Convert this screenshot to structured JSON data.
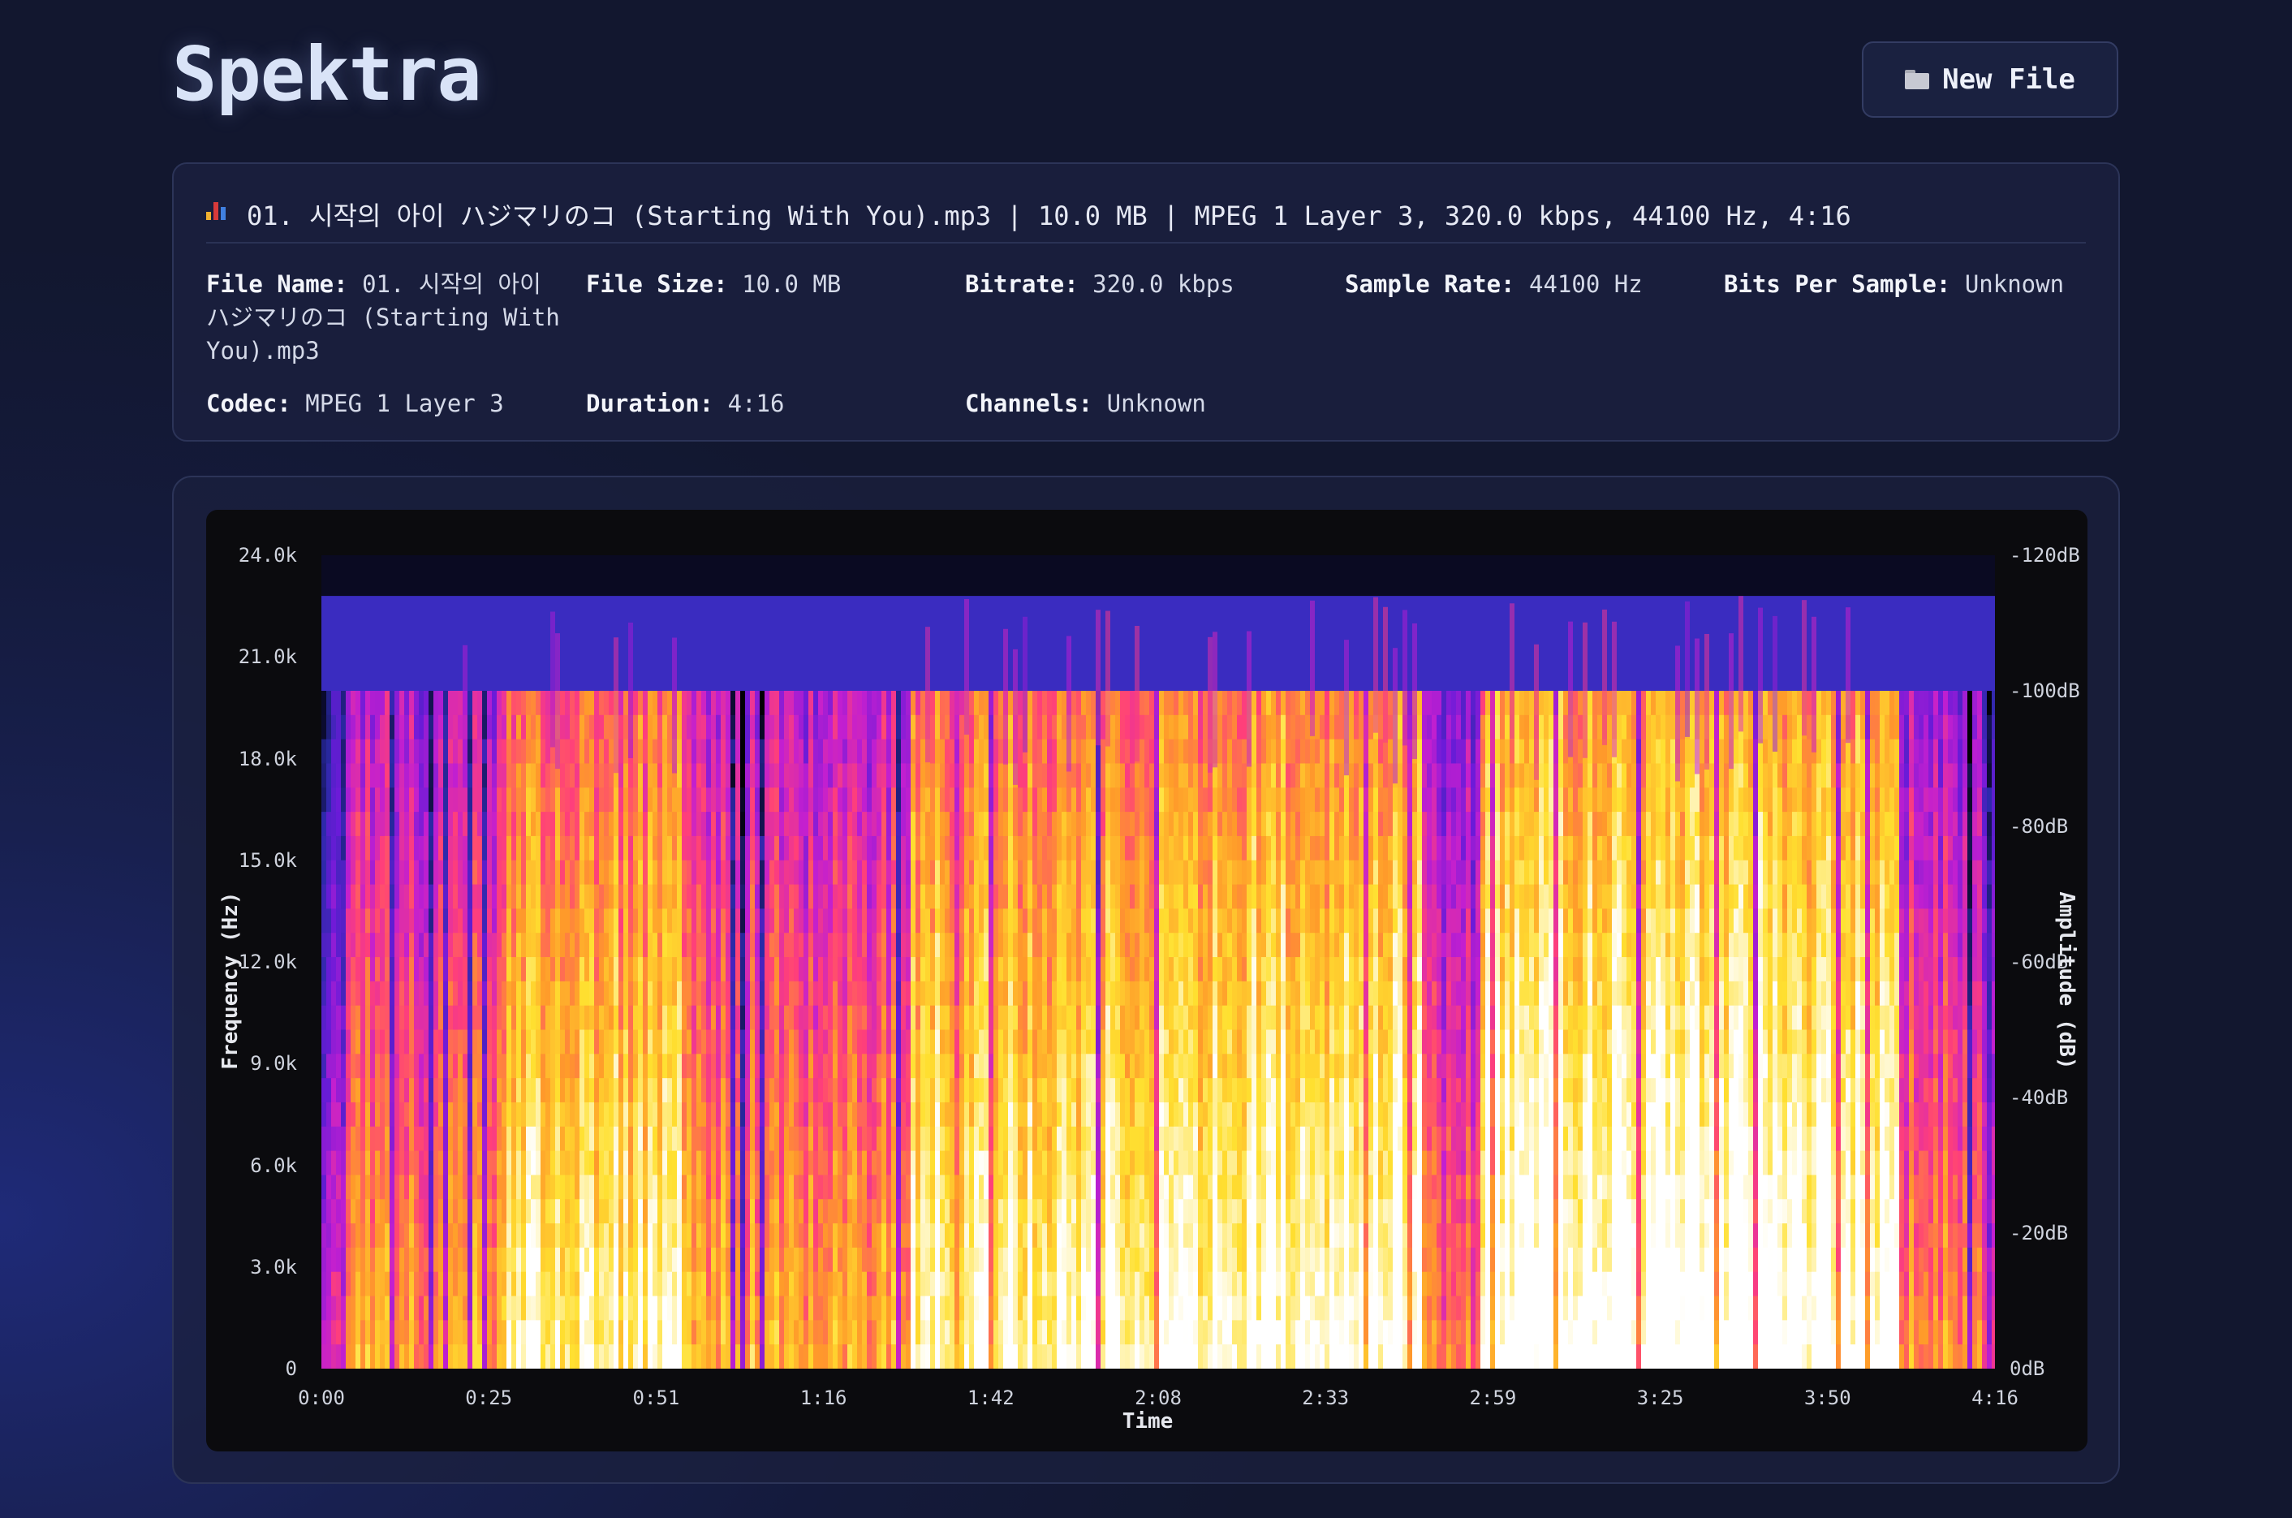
{
  "app": {
    "title": "Spektra",
    "new_file_label": "New File",
    "new_file_icon": "folder-icon"
  },
  "file": {
    "summary_icon": "bar-chart-icon",
    "summary": "01. 시작의 아이 ハジマリのコ (Starting With You).mp3 | 10.0 MB | MPEG 1 Layer 3, 320.0 kbps, 44100 Hz, 4:16",
    "details": [
      {
        "label": "File Name:",
        "value": "01. 시작의 아이 ハジマリのコ (Starting With You).mp3"
      },
      {
        "label": "File Size:",
        "value": "10.0 MB"
      },
      {
        "label": "Bitrate:",
        "value": "320.0 kbps"
      },
      {
        "label": "Sample Rate:",
        "value": "44100 Hz"
      },
      {
        "label": "Bits Per Sample:",
        "value": "Unknown"
      },
      {
        "label": "Codec:",
        "value": "MPEG 1 Layer 3"
      },
      {
        "label": "Duration:",
        "value": "4:16"
      },
      {
        "label": "Channels:",
        "value": "Unknown"
      }
    ]
  },
  "chart_data": {
    "type": "heatmap",
    "xlabel": "Time",
    "ylabel": "Frequency (Hz)",
    "colorbar_label": "Amplitude (dB)",
    "x_ticks": [
      "0:00",
      "0:25",
      "0:51",
      "1:16",
      "1:42",
      "2:08",
      "2:33",
      "2:59",
      "3:25",
      "3:50",
      "4:16"
    ],
    "y_ticks": [
      "0",
      "3.0k",
      "6.0k",
      "9.0k",
      "12.0k",
      "15.0k",
      "18.0k",
      "21.0k",
      "24.0k"
    ],
    "colorbar_ticks": [
      "0dB",
      "-20dB",
      "-40dB",
      "-60dB",
      "-80dB",
      "-100dB",
      "-120dB"
    ],
    "xlim_seconds": [
      0,
      256
    ],
    "ylim_hz": [
      0,
      24000
    ],
    "lowpass_cutoff_hz": 20000,
    "colormap": [
      "#000004",
      "#2a2aa8",
      "#6a1bd8",
      "#c21fd0",
      "#ff3f7a",
      "#ff9a2a",
      "#ffe030",
      "#ffffff"
    ]
  }
}
